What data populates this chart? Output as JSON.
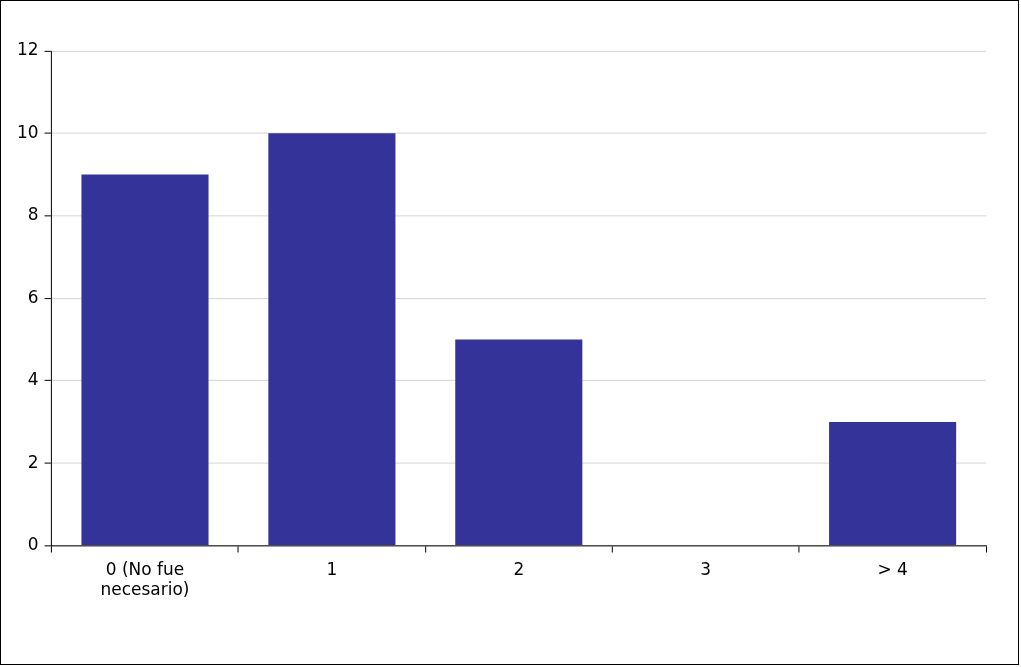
{
  "chart_data": {
    "type": "bar",
    "categories": [
      "0 (No fue necesario)",
      "1",
      "2",
      "3",
      "> 4"
    ],
    "values": [
      9,
      10,
      5,
      0,
      3
    ],
    "color": "#333399",
    "ylim": [
      0,
      12
    ],
    "yticks": [
      0,
      2,
      4,
      6,
      8,
      10,
      12
    ],
    "grid": "y",
    "legend": false
  }
}
